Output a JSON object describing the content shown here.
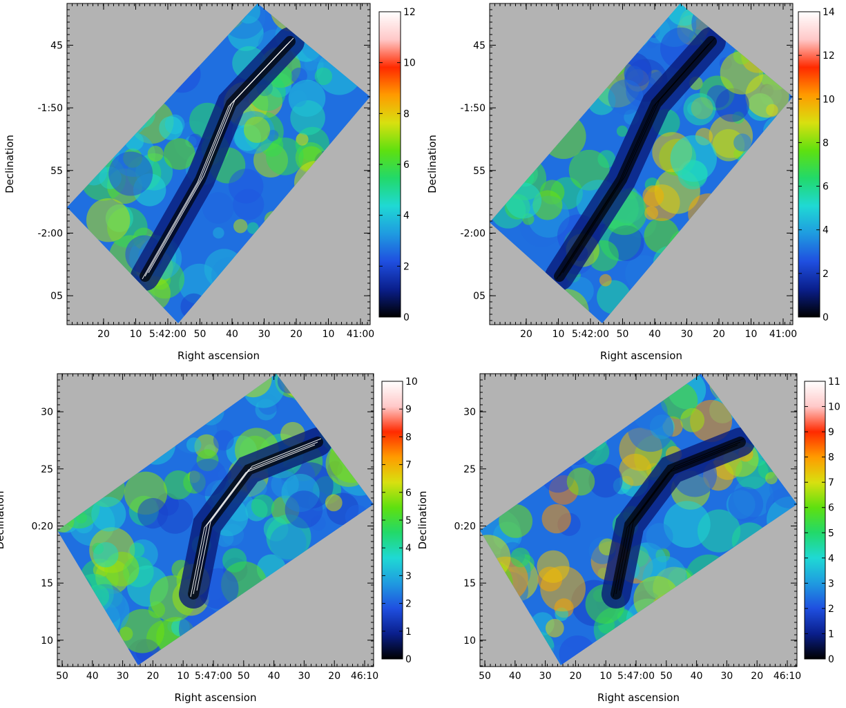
{
  "colors": {
    "background": "#b3b3b3",
    "frame": "#000000",
    "colormap": [
      "#000000",
      "#0a1f8c",
      "#1f4fe0",
      "#1f9be0",
      "#1fd9d4",
      "#22d96a",
      "#5ee010",
      "#d8e010",
      "#ff9b00",
      "#ff2a00",
      "#ffc8c8",
      "#ffffff"
    ],
    "contour_white": "#ffffff",
    "contour_black": "#000000"
  },
  "panels": [
    {
      "id": "top-left",
      "xlabel": "Right ascension",
      "ylabel": "Declination",
      "xticks": [
        "20",
        "10",
        "5:42:00",
        "50",
        "40",
        "30",
        "20",
        "10",
        "41:00"
      ],
      "yticks": [
        "45",
        "-1:50",
        "55",
        "-2:00",
        "05"
      ],
      "colorbar_ticks": [
        "0",
        "2",
        "4",
        "6",
        "8",
        "10",
        "12"
      ],
      "colorbar_range": [
        0,
        12
      ],
      "contour_color": "white"
    },
    {
      "id": "top-right",
      "xlabel": "Right ascension",
      "ylabel": "Declination",
      "xticks": [
        "20",
        "10",
        "5:42:00",
        "50",
        "40",
        "30",
        "20",
        "10",
        "41:00"
      ],
      "yticks": [
        "45",
        "-1:50",
        "55",
        "-2:00",
        "05"
      ],
      "colorbar_ticks": [
        "0",
        "2",
        "4",
        "6",
        "8",
        "10",
        "12",
        "14"
      ],
      "colorbar_range": [
        0,
        14
      ],
      "contour_color": "black"
    },
    {
      "id": "bottom-left",
      "xlabel": "Right ascension",
      "ylabel": "Declination",
      "xticks": [
        "50",
        "40",
        "30",
        "20",
        "10",
        "5:47:00",
        "50",
        "40",
        "30",
        "20",
        "46:10"
      ],
      "yticks": [
        "30",
        "25",
        "0:20",
        "15",
        "10"
      ],
      "colorbar_ticks": [
        "0",
        "1",
        "2",
        "3",
        "4",
        "5",
        "6",
        "7",
        "8",
        "9",
        "10"
      ],
      "colorbar_range": [
        0,
        10
      ],
      "contour_color": "white"
    },
    {
      "id": "bottom-right",
      "xlabel": "Right ascension",
      "ylabel": "Declination",
      "xticks": [
        "50",
        "40",
        "30",
        "20",
        "10",
        "5:47:00",
        "50",
        "40",
        "30",
        "20",
        "46:10"
      ],
      "yticks": [
        "30",
        "25",
        "0:20",
        "15",
        "10"
      ],
      "colorbar_ticks": [
        "0",
        "1",
        "2",
        "3",
        "4",
        "5",
        "6",
        "7",
        "8",
        "9",
        "10",
        "11"
      ],
      "colorbar_range": [
        0,
        11
      ],
      "contour_color": "black"
    }
  ]
}
